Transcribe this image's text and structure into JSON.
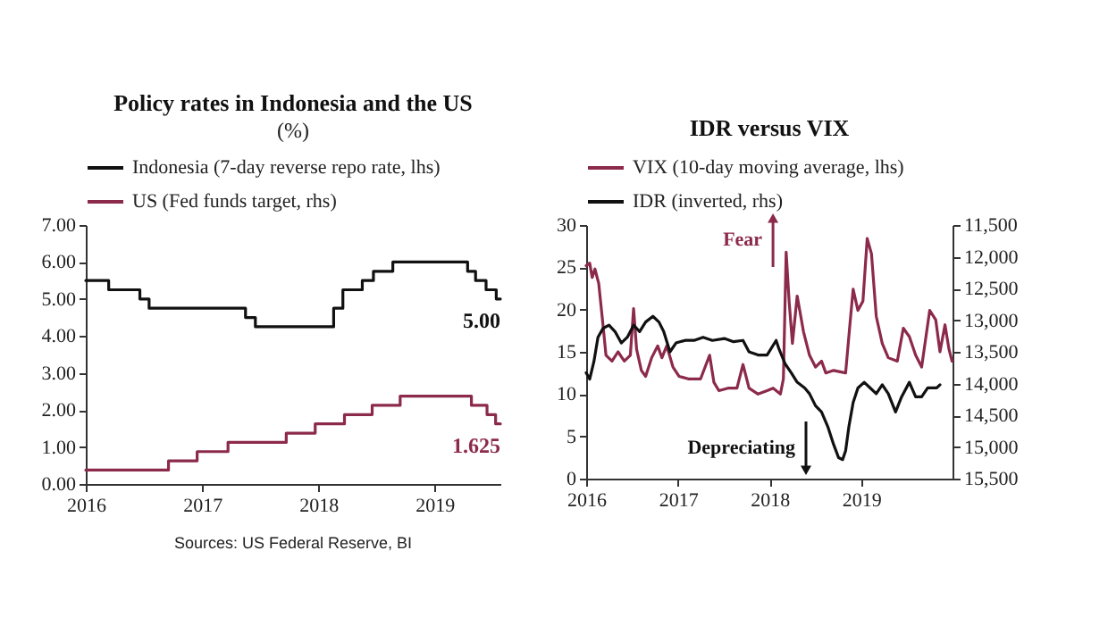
{
  "chart_data": [
    {
      "type": "step",
      "title": "Policy rates in Indonesia and the US",
      "subtitle": "(%)",
      "series": [
        {
          "name": "Indonesia (7-day reverse repo rate, lhs)",
          "color": "#111111",
          "x": [
            "2016-01-01",
            "2016-03-13",
            "2016-06-19",
            "2016-07-18",
            "2017-05-17",
            "2017-06-17",
            "2018-02-18",
            "2018-03-19",
            "2018-05-19",
            "2018-06-23",
            "2018-08-23",
            "2019-04-15",
            "2019-05-10",
            "2019-06-12",
            "2019-07-14",
            "2019-07-27"
          ],
          "values": [
            5.5,
            5.25,
            5.0,
            4.75,
            4.5,
            4.25,
            4.75,
            5.25,
            5.5,
            5.75,
            6.0,
            5.75,
            5.5,
            5.25,
            5.0,
            5.0
          ]
        },
        {
          "name": "US (Fed funds target, rhs)",
          "color": "#8c2a4b",
          "x": [
            "2016-01-01",
            "2016-09-17",
            "2016-12-16",
            "2017-03-23",
            "2017-09-22",
            "2017-12-22",
            "2018-03-24",
            "2018-06-19",
            "2018-09-15",
            "2019-04-27",
            "2019-06-15",
            "2019-07-12",
            "2019-07-27"
          ],
          "values": [
            0.375,
            0.625,
            0.875,
            1.125,
            1.375,
            1.625,
            1.875,
            2.125,
            2.375,
            2.125,
            1.875,
            1.625,
            1.625
          ]
        }
      ],
      "xlim": [
        "2016-01-01",
        "2019-07-27"
      ],
      "xticks": [
        "2016",
        "2017",
        "2018",
        "2019"
      ],
      "ylim": [
        0,
        7
      ],
      "yticks": [
        {
          "value": 0,
          "label": "0.00"
        },
        {
          "value": 1,
          "label": "1.00"
        },
        {
          "value": 2,
          "label": "2.00"
        },
        {
          "value": 3,
          "label": "3.00"
        },
        {
          "value": 4,
          "label": "4.00"
        },
        {
          "value": 5,
          "label": "5.00"
        },
        {
          "value": 6,
          "label": "6.00"
        },
        {
          "value": 7,
          "label": "7.00"
        }
      ],
      "annotations": [
        {
          "text": "5.00",
          "x": "2019-07-27",
          "y": 5.0
        },
        {
          "text": "1.625",
          "x": "2019-07-27",
          "y": 1.625
        },
        "Sources: US Federal Reserve, BI"
      ],
      "legend": "top left",
      "grid": false
    },
    {
      "type": "line",
      "title": "IDR versus VIX",
      "series": [
        {
          "name": "VIX (10-day moving average, lhs)",
          "color": "#8c2a4b",
          "x": [
            "2016-01-01",
            "2016-01-15",
            "2016-01-25",
            "2016-02-05",
            "2016-02-20",
            "2016-03-08",
            "2016-03-20",
            "2016-04-13",
            "2016-05-07",
            "2016-06-01",
            "2016-06-25",
            "2016-07-08",
            "2016-07-20",
            "2016-08-08",
            "2016-08-25",
            "2016-09-18",
            "2016-10-12",
            "2016-10-29",
            "2016-11-17",
            "2016-12-12",
            "2017-01-05",
            "2017-02-11",
            "2017-04-01",
            "2017-05-07",
            "2017-05-24",
            "2017-06-13",
            "2017-07-19",
            "2017-08-24",
            "2017-09-17",
            "2017-10-11",
            "2017-11-16",
            "2017-12-22",
            "2018-01-15",
            "2018-02-13",
            "2018-02-25",
            "2018-03-08",
            "2018-03-20",
            "2018-04-02",
            "2018-04-21",
            "2018-05-16",
            "2018-06-09",
            "2018-07-03",
            "2018-07-27",
            "2018-08-13",
            "2018-09-13",
            "2018-10-31",
            "2018-11-17",
            "2018-11-30",
            "2018-12-19",
            "2019-01-08",
            "2019-01-25",
            "2019-02-11",
            "2019-03-02",
            "2019-03-26",
            "2019-04-19",
            "2019-05-25",
            "2019-06-18",
            "2019-07-12",
            "2019-08-06",
            "2019-08-30",
            "2019-10-01",
            "2019-10-25",
            "2019-11-11",
            "2019-12-01",
            "2019-12-17",
            "2019-12-29"
          ],
          "values": [
            25.2,
            25.5,
            23.8,
            24.8,
            23.1,
            18.2,
            14.6,
            13.9,
            15,
            13.9,
            14.6,
            20.1,
            15.3,
            12.8,
            12.1,
            14.3,
            15.7,
            14.3,
            15.7,
            13.2,
            12.1,
            11.8,
            11.8,
            14.6,
            11.4,
            10.4,
            10.7,
            10.7,
            13.5,
            10.7,
            10,
            10.4,
            10.7,
            10,
            11.8,
            26.8,
            20.9,
            16,
            21.6,
            17.4,
            14.6,
            13.2,
            13.9,
            12.5,
            12.8,
            12.5,
            18.2,
            22.4,
            19.9,
            21,
            28.4,
            26.6,
            19.2,
            16,
            14.3,
            13.9,
            17.8,
            16.8,
            14.6,
            13.2,
            19.9,
            18.8,
            15,
            18.2,
            15.3,
            13.9
          ]
        },
        {
          "name": "IDR (inverted, rhs)",
          "color": "#111111",
          "axis": "y2",
          "x": [
            "2016-01-01",
            "2016-01-15",
            "2016-02-01",
            "2016-02-17",
            "2016-03-08",
            "2016-04-01",
            "2016-04-25",
            "2016-05-20",
            "2016-06-13",
            "2016-07-08",
            "2016-08-01",
            "2016-08-25",
            "2016-09-23",
            "2016-10-17",
            "2016-11-05",
            "2016-11-30",
            "2016-12-24",
            "2017-01-29",
            "2017-03-06",
            "2017-04-11",
            "2017-05-18",
            "2017-07-05",
            "2017-08-10",
            "2017-09-17",
            "2017-10-11",
            "2017-11-16",
            "2017-12-22",
            "2018-01-27",
            "2018-02-08",
            "2018-03-04",
            "2018-03-28",
            "2018-04-21",
            "2018-05-21",
            "2018-06-09",
            "2018-07-03",
            "2018-07-27",
            "2018-08-21",
            "2018-09-13",
            "2018-10-03",
            "2018-10-19",
            "2018-10-31",
            "2018-11-13",
            "2018-11-30",
            "2018-12-19",
            "2019-01-13",
            "2019-02-06",
            "2019-03-02",
            "2019-03-26",
            "2019-04-19",
            "2019-05-18",
            "2019-06-11",
            "2019-07-12",
            "2019-08-06",
            "2019-08-30",
            "2019-09-23",
            "2019-10-29",
            "2019-11-11"
          ],
          "values": [
            13830,
            13930,
            13650,
            13270,
            13130,
            13080,
            13180,
            13360,
            13270,
            13080,
            13180,
            13030,
            12940,
            13030,
            13180,
            13500,
            13360,
            13320,
            13320,
            13270,
            13320,
            13290,
            13340,
            13320,
            13500,
            13550,
            13550,
            13320,
            13460,
            13690,
            13830,
            13980,
            14070,
            14160,
            14350,
            14450,
            14680,
            14960,
            15170,
            15200,
            15060,
            14680,
            14300,
            14070,
            13980,
            14070,
            14160,
            14020,
            14160,
            14450,
            14210,
            13980,
            14210,
            14210,
            14070,
            14070,
            14020
          ]
        }
      ],
      "xlim": [
        "2016-01-01",
        "2019-12-31"
      ],
      "xticks": [
        "2016",
        "2017",
        "2018",
        "2019"
      ],
      "ylim": [
        0,
        30
      ],
      "yticks": [
        0,
        5,
        10,
        15,
        20,
        25,
        30
      ],
      "y2lim": [
        15500,
        11500
      ],
      "y2ticks": [
        {
          "value": 11500,
          "label": "11,500"
        },
        {
          "value": 12000,
          "label": "12,000"
        },
        {
          "value": 12500,
          "label": "12,500"
        },
        {
          "value": 13000,
          "label": "13,000"
        },
        {
          "value": 13500,
          "label": "13,500"
        },
        {
          "value": 14000,
          "label": "14,000"
        },
        {
          "value": 14500,
          "label": "14,500"
        },
        {
          "value": 15000,
          "label": "15,000"
        },
        {
          "value": 15500,
          "label": "15,500"
        }
      ],
      "annotations": [
        "Fear",
        "Depreciating"
      ],
      "legend": "top left",
      "grid": false
    }
  ]
}
